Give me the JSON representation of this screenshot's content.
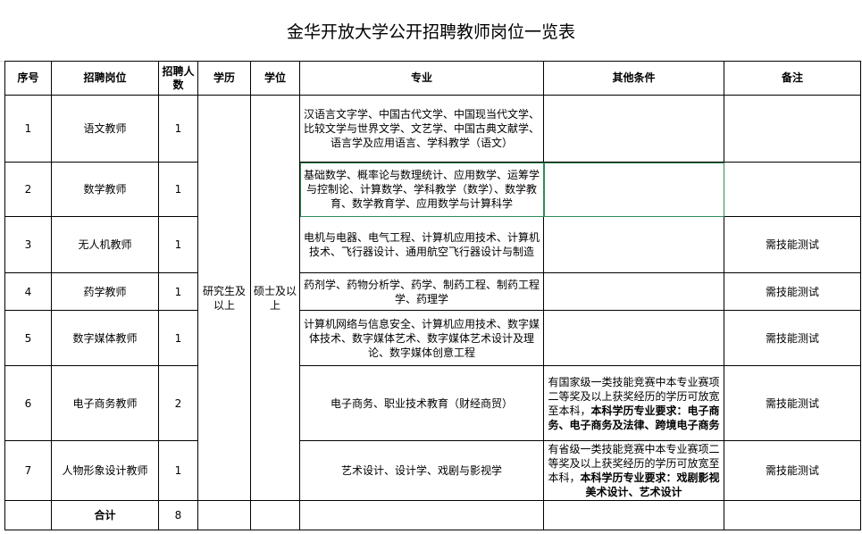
{
  "title": "金华开放大学公开招聘教师岗位一览表",
  "headers": [
    "序号",
    "招聘岗位",
    "招聘人数",
    "学历",
    "学位",
    "专业",
    "其他条件",
    "备注"
  ],
  "education": "研究生及以上",
  "degree": "硕士及以上",
  "rows": [
    {
      "no": "1",
      "post": "语文教师",
      "count": "1",
      "major": "汉语言文字学、中国古代文学、中国现当代文学、比较文学与世界文学、文艺学、中国古典文献学、语言学及应用语言、学科教学（语文）",
      "other": "",
      "other_bold": "",
      "note": ""
    },
    {
      "no": "2",
      "post": "数学教师",
      "count": "1",
      "major": "基础数学、概率论与数理统计、应用数学、运筹学与控制论、计算数学、学科教学（数学）、数学教育、数学教育学、应用数学与计算科学",
      "other": "",
      "other_bold": "",
      "note": ""
    },
    {
      "no": "3",
      "post": "无人机教师",
      "count": "1",
      "major": "电机与电器、电气工程、计算机应用技术、计算机技术、飞行器设计、通用航空飞行器设计与制造",
      "other": "",
      "other_bold": "",
      "note": "需技能测试"
    },
    {
      "no": "4",
      "post": "药学教师",
      "count": "1",
      "major": "药剂学、药物分析学、药学、制药工程、制药工程学、药理学",
      "other": "",
      "other_bold": "",
      "note": "需技能测试"
    },
    {
      "no": "5",
      "post": "数字媒体教师",
      "count": "1",
      "major": "计算机网络与信息安全、计算机应用技术、数字媒体技术、数字媒体艺术、数字媒体艺术设计及理论、数字媒体创意工程",
      "other": "",
      "other_bold": "",
      "note": "需技能测试"
    },
    {
      "no": "6",
      "post": "电子商务教师",
      "count": "2",
      "major": "电子商务、职业技术教育（财经商贸）",
      "other": "有国家级一类技能竞赛中本专业赛项二等奖及以上获奖经历的学历可放宽至本科，",
      "other_bold": "本科学历专业要求：电子商务、电子商务及法律、跨境电子商务",
      "note": "需技能测试"
    },
    {
      "no": "7",
      "post": "人物形象设计教师",
      "count": "1",
      "major": "艺术设计、设计学、戏剧与影视学",
      "other": "有省级一类技能竞赛中本专业赛项二等奖及以上获奖经历的学历可放宽至本科，",
      "other_bold": "本科学历专业要求：戏剧影视美术设计、艺术设计",
      "note": "需技能测试"
    }
  ],
  "total": {
    "label": "合计",
    "count": "8"
  }
}
